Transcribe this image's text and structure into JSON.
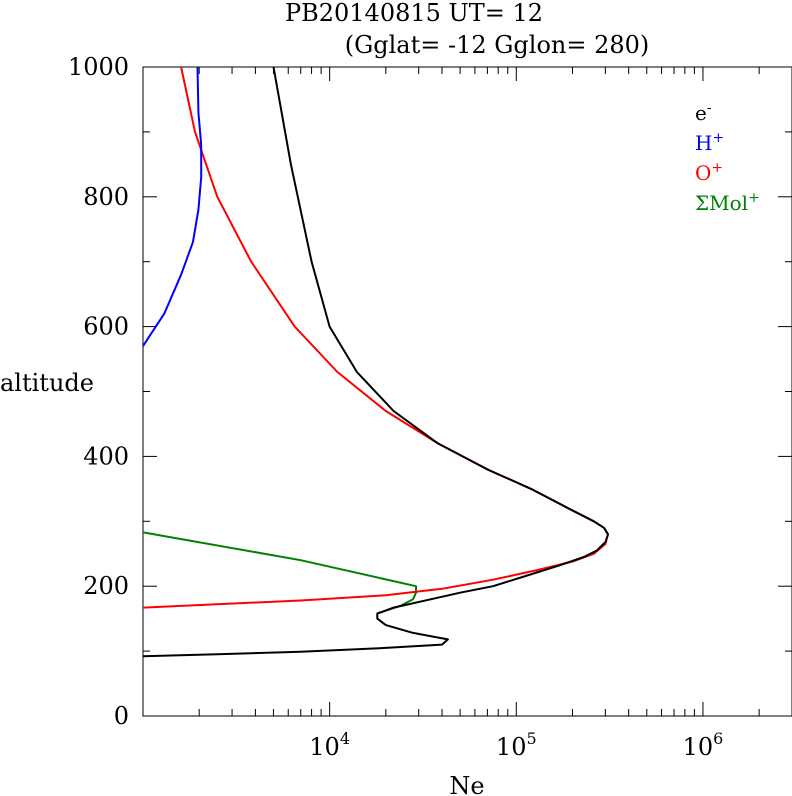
{
  "chart_data": {
    "type": "line",
    "title": "PB20140815   UT=  12",
    "subtitle": "(Gglat= -12   Gglon=  280)",
    "xlabel": "Ne",
    "ylabel": "altitude",
    "x_scale": "log",
    "xlim": [
      1000,
      3000000
    ],
    "ylim": [
      0,
      1000
    ],
    "y_ticks": [
      {
        "value": 0,
        "label": "0"
      },
      {
        "value": 200,
        "label": "200"
      },
      {
        "value": 400,
        "label": "400"
      },
      {
        "value": 600,
        "label": "600"
      },
      {
        "value": 800,
        "label": "800"
      },
      {
        "value": 1000,
        "label": "1000"
      }
    ],
    "x_ticks": [
      {
        "value": 10000,
        "base": "10",
        "exp": "4"
      },
      {
        "value": 100000,
        "base": "10",
        "exp": "5"
      },
      {
        "value": 1000000,
        "base": "10",
        "exp": "6"
      }
    ],
    "grid": false,
    "legend_position": "top-right",
    "series": [
      {
        "key": "electron",
        "name_base": "e",
        "name_sup": "-",
        "color": "#000000",
        "points": [
          [
            1000,
            92
          ],
          [
            2500,
            95
          ],
          [
            7000,
            99
          ],
          [
            20000,
            105
          ],
          [
            40000,
            110
          ],
          [
            43000,
            118
          ],
          [
            28000,
            128
          ],
          [
            20000,
            140
          ],
          [
            18000,
            150
          ],
          [
            18000,
            158
          ],
          [
            22000,
            167
          ],
          [
            35000,
            180
          ],
          [
            50000,
            190
          ],
          [
            75000,
            200
          ],
          [
            110000,
            215
          ],
          [
            170000,
            232
          ],
          [
            230000,
            245
          ],
          [
            270000,
            255
          ],
          [
            300000,
            268
          ],
          [
            310000,
            280
          ],
          [
            295000,
            290
          ],
          [
            260000,
            300
          ],
          [
            190000,
            320
          ],
          [
            120000,
            350
          ],
          [
            70000,
            380
          ],
          [
            38000,
            420
          ],
          [
            22000,
            470
          ],
          [
            14000,
            530
          ],
          [
            10000,
            600
          ],
          [
            8000,
            700
          ],
          [
            6200,
            850
          ],
          [
            5000,
            1000
          ]
        ]
      },
      {
        "key": "hydrogen",
        "name_base": "H",
        "name_sup": "+",
        "color": "#0000ff",
        "points": [
          [
            1000,
            570
          ],
          [
            1300,
            620
          ],
          [
            1600,
            680
          ],
          [
            1850,
            730
          ],
          [
            1980,
            780
          ],
          [
            2050,
            830
          ],
          [
            2050,
            880
          ],
          [
            1980,
            930
          ],
          [
            1960,
            1000
          ]
        ]
      },
      {
        "key": "oxygen",
        "name_base": "O",
        "name_sup": "+",
        "color": "#ff0000",
        "points": [
          [
            1000,
            167
          ],
          [
            7000,
            178
          ],
          [
            20000,
            186
          ],
          [
            40000,
            196
          ],
          [
            75000,
            210
          ],
          [
            130000,
            225
          ],
          [
            200000,
            238
          ],
          [
            260000,
            250
          ],
          [
            300000,
            265
          ],
          [
            310000,
            280
          ],
          [
            295000,
            290
          ],
          [
            260000,
            300
          ],
          [
            190000,
            320
          ],
          [
            120000,
            350
          ],
          [
            70000,
            380
          ],
          [
            38000,
            420
          ],
          [
            20000,
            470
          ],
          [
            11000,
            530
          ],
          [
            6500,
            600
          ],
          [
            3800,
            700
          ],
          [
            2500,
            800
          ],
          [
            1900,
            900
          ],
          [
            1600,
            1000
          ]
        ]
      },
      {
        "key": "molecular",
        "name_base": "ΣMol",
        "name_sup": "+",
        "color": "#008000",
        "points": [
          [
            18000,
            158
          ],
          [
            24000,
            170
          ],
          [
            28000,
            180
          ],
          [
            29000,
            190
          ],
          [
            29000,
            200
          ],
          [
            7000,
            240
          ],
          [
            1000,
            283
          ]
        ]
      }
    ]
  }
}
